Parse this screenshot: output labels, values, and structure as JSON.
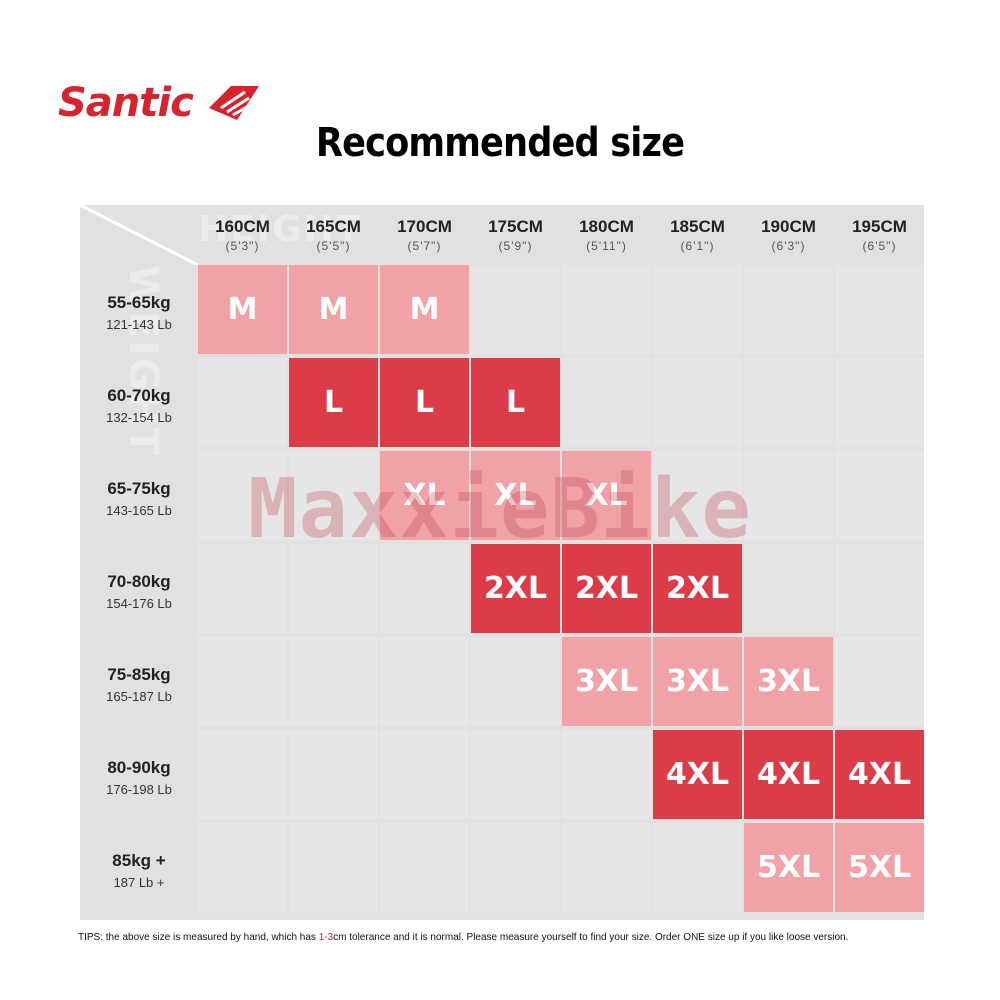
{
  "brand": {
    "name": "Santic",
    "logo_icon": "santic-diamond-icon",
    "color": "#d6232e"
  },
  "title": "Recommended size",
  "watermark": "MaxxieBike",
  "axis_labels": {
    "height": "HEIGHT",
    "weight": "WEIGHT"
  },
  "columns": [
    {
      "cm": "160CM",
      "ft": "(5'3\")"
    },
    {
      "cm": "165CM",
      "ft": "(5'5\")"
    },
    {
      "cm": "170CM",
      "ft": "(5'7\")"
    },
    {
      "cm": "175CM",
      "ft": "(5'9\")"
    },
    {
      "cm": "180CM",
      "ft": "(5'11\")"
    },
    {
      "cm": "185CM",
      "ft": "(6'1\")"
    },
    {
      "cm": "190CM",
      "ft": "(6'3\")"
    },
    {
      "cm": "195CM",
      "ft": "(6'5\")"
    }
  ],
  "rows": [
    {
      "kg": "55-65kg",
      "lb": "121-143 Lb"
    },
    {
      "kg": "60-70kg",
      "lb": "132-154 Lb"
    },
    {
      "kg": "65-75kg",
      "lb": "143-165 Lb"
    },
    {
      "kg": "70-80kg",
      "lb": "154-176 Lb"
    },
    {
      "kg": "75-85kg",
      "lb": "165-187 Lb"
    },
    {
      "kg": "80-90kg",
      "lb": "176-198 Lb"
    },
    {
      "kg": "85kg +",
      "lb": "187 Lb +"
    }
  ],
  "sizes": [
    [
      "M",
      "M",
      "M",
      "",
      "",
      "",
      "",
      ""
    ],
    [
      "",
      "L",
      "L",
      "L",
      "",
      "",
      "",
      ""
    ],
    [
      "",
      "",
      "XL",
      "XL",
      "XL",
      "",
      "",
      ""
    ],
    [
      "",
      "",
      "",
      "2XL",
      "2XL",
      "2XL",
      "",
      ""
    ],
    [
      "",
      "",
      "",
      "",
      "3XL",
      "3XL",
      "3XL",
      ""
    ],
    [
      "",
      "",
      "",
      "",
      "",
      "4XL",
      "4XL",
      "4XL"
    ],
    [
      "",
      "",
      "",
      "",
      "",
      "",
      "5XL",
      "5XL"
    ]
  ],
  "colors": {
    "light": "#f0a2a7",
    "dark": "#dc3c48",
    "empty": "#e6e6e6",
    "grid": "#e1e1e1"
  },
  "tips": {
    "before": "TIPS:  the above size is measured by hand, which has ",
    "highlight": "1-3",
    "after": "cm tolerance and it is normal. Please measure yourself to find your size. Order ONE size up if you like loose version."
  }
}
